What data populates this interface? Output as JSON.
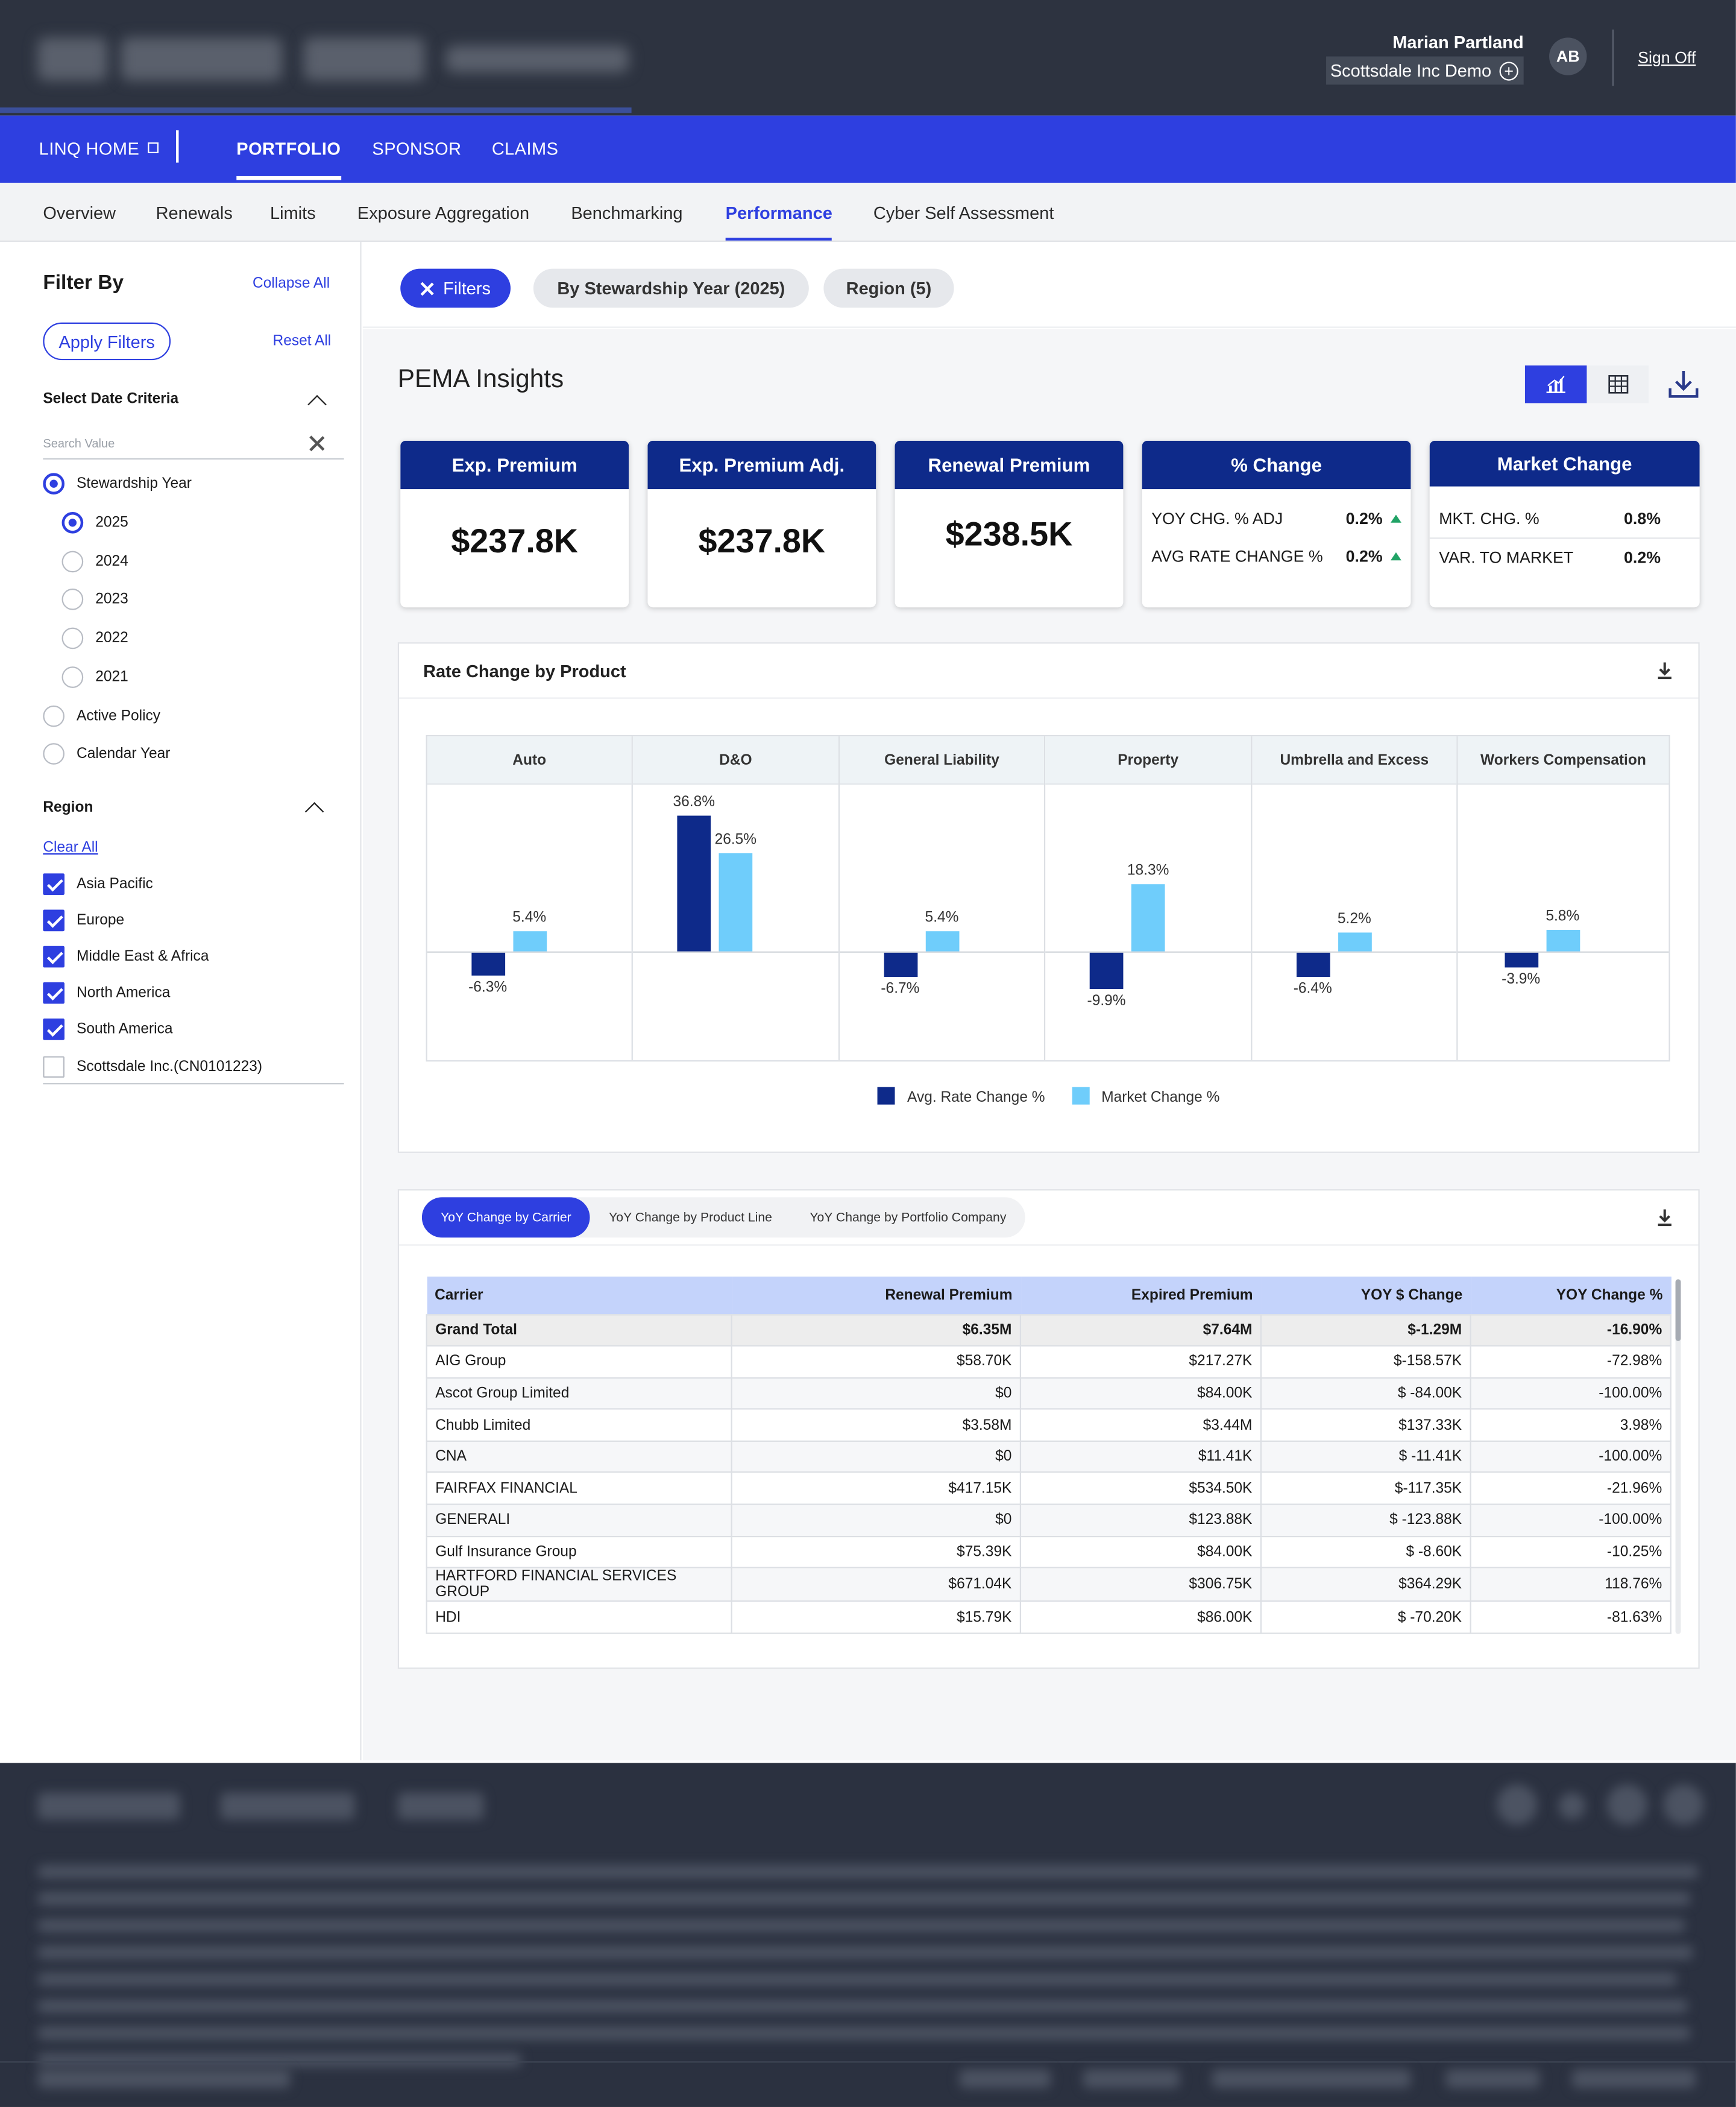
{
  "header": {
    "user_name": "Marian Partland",
    "company": "Scottsdale Inc Demo",
    "avatar_initials": "AB",
    "sign_off": "Sign Off"
  },
  "main_nav": {
    "home": "LINQ HOME",
    "items": [
      "PORTFOLIO",
      "SPONSOR",
      "CLAIMS"
    ],
    "active": "PORTFOLIO"
  },
  "sub_nav": {
    "items": [
      "Overview",
      "Renewals",
      "Limits",
      "Exposure Aggregation",
      "Benchmarking",
      "Performance",
      "Cyber Self Assessment"
    ],
    "active": "Performance"
  },
  "sidebar": {
    "title": "Filter By",
    "collapse_all": "Collapse All",
    "apply_filters": "Apply Filters",
    "reset_all": "Reset All",
    "date_section": "Select Date Criteria",
    "search_placeholder": "Search Value",
    "date_options": [
      {
        "label": "Stewardship Year",
        "selected": true
      },
      {
        "label": "2025",
        "selected": true
      },
      {
        "label": "2024",
        "selected": false
      },
      {
        "label": "2023",
        "selected": false
      },
      {
        "label": "2022",
        "selected": false
      },
      {
        "label": "2021",
        "selected": false
      },
      {
        "label": "Active Policy",
        "selected": false
      },
      {
        "label": "Calendar Year",
        "selected": false
      }
    ],
    "region_section": "Region",
    "clear_all": "Clear All",
    "regions": [
      {
        "label": "Asia Pacific",
        "checked": true
      },
      {
        "label": "Europe",
        "checked": true
      },
      {
        "label": "Middle East & Africa",
        "checked": true
      },
      {
        "label": "North America",
        "checked": true
      },
      {
        "label": "South America",
        "checked": true
      },
      {
        "label": "Scottsdale Inc.(CN0101223)",
        "checked": false
      }
    ]
  },
  "chips": {
    "filters": "Filters",
    "stewardship": "By Stewardship Year (2025)",
    "region": "Region (5)"
  },
  "insights": {
    "title": "PEMA Insights",
    "cards": {
      "exp_premium": {
        "title": "Exp. Premium",
        "value": "$237.8K"
      },
      "exp_premium_adj": {
        "title": "Exp. Premium Adj.",
        "value": "$237.8K"
      },
      "renewal_premium": {
        "title": "Renewal Premium",
        "value": "$238.5K"
      },
      "pct_change": {
        "title": "% Change",
        "rows": [
          {
            "label": "YOY CHG. % ADJ",
            "value": "0.2%"
          },
          {
            "label": "AVG RATE CHANGE %",
            "value": "0.2%"
          }
        ]
      },
      "market_change": {
        "title": "Market Change",
        "rows": [
          {
            "label": "MKT. CHG. %",
            "value": "0.8%"
          },
          {
            "label": "VAR. TO MARKET",
            "value": "0.2%"
          }
        ]
      }
    }
  },
  "rate_chart": {
    "panel_title": "Rate Change by Product"
  },
  "chart_data": {
    "type": "bar",
    "title": "Rate Change by Product",
    "categories": [
      "Auto",
      "D&O",
      "General Liability",
      "Property",
      "Umbrella and Excess",
      "Workers Compensation"
    ],
    "series": [
      {
        "name": "Avg. Rate Change %",
        "color": "#0e2a8a",
        "values": [
          -6.3,
          36.8,
          -6.7,
          -9.9,
          -6.4,
          -3.9
        ],
        "labels": [
          "-6.3%",
          "36.8%",
          "-6.7%",
          "-9.9%",
          "-6.4%",
          "-3.9%"
        ]
      },
      {
        "name": "Market Change %",
        "color": "#6fcdfb",
        "values": [
          5.4,
          26.5,
          5.4,
          18.3,
          5.2,
          5.8
        ],
        "labels": [
          "5.4%",
          "26.5%",
          "5.4%",
          "18.3%",
          "5.2%",
          "5.8%"
        ]
      }
    ],
    "legend_position": "bottom",
    "grid": false
  },
  "yoy": {
    "tabs": [
      "YoY Change by Carrier",
      "YoY  Change by Product Line",
      "YoY  Change by Portfolio Company"
    ],
    "active_tab": "YoY Change by Carrier",
    "columns": [
      "Carrier",
      "Renewal Premium",
      "Expired Premium",
      "YOY $ Change",
      "YOY Change %"
    ],
    "total": [
      "Grand Total",
      "$6.35M",
      "$7.64M",
      "$-1.29M",
      "-16.90%"
    ],
    "rows": [
      [
        "AIG Group",
        "$58.70K",
        "$217.27K",
        "$-158.57K",
        "-72.98%"
      ],
      [
        "Ascot Group Limited",
        "$0",
        "$84.00K",
        "$ -84.00K",
        "-100.00%"
      ],
      [
        "Chubb Limited",
        "$3.58M",
        "$3.44M",
        "$137.33K",
        "3.98%"
      ],
      [
        "CNA",
        "$0",
        "$11.41K",
        "$ -11.41K",
        "-100.00%"
      ],
      [
        "FAIRFAX FINANCIAL",
        "$417.15K",
        "$534.50K",
        "$-117.35K",
        "-21.96%"
      ],
      [
        "GENERALI",
        "$0",
        "$123.88K",
        "$ -123.88K",
        "-100.00%"
      ],
      [
        "Gulf Insurance Group",
        "$75.39K",
        "$84.00K",
        "$ -8.60K",
        "-10.25%"
      ],
      [
        "HARTFORD FINANCIAL SERVICES GROUP",
        "$671.04K",
        "$306.75K",
        "$364.29K",
        "118.76%"
      ],
      [
        "HDI",
        "$15.79K",
        "$86.00K",
        "$ -70.20K",
        "-81.63%"
      ]
    ]
  }
}
